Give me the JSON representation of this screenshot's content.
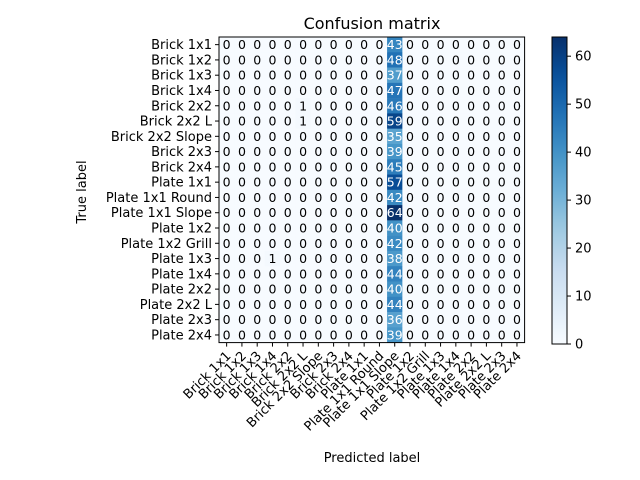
{
  "chart_data": {
    "type": "heatmap",
    "title": "Confusion matrix",
    "xlabel": "Predicted label",
    "ylabel": "True label",
    "labels": [
      "Brick 1x1",
      "Brick 1x2",
      "Brick 1x3",
      "Brick 1x4",
      "Brick 2x2",
      "Brick 2x2 L",
      "Brick 2x2 Slope",
      "Brick 2x3",
      "Brick 2x4",
      "Plate 1x1",
      "Plate 1x1 Round",
      "Plate 1x1 Slope",
      "Plate 1x2",
      "Plate 1x2 Grill",
      "Plate 1x3",
      "Plate 1x4",
      "Plate 2x2",
      "Plate 2x2 L",
      "Plate 2x3",
      "Plate 2x4"
    ],
    "matrix": [
      [
        0,
        0,
        0,
        0,
        0,
        0,
        0,
        0,
        0,
        0,
        0,
        43,
        0,
        0,
        0,
        0,
        0,
        0,
        0,
        0
      ],
      [
        0,
        0,
        0,
        0,
        0,
        0,
        0,
        0,
        0,
        0,
        0,
        48,
        0,
        0,
        0,
        0,
        0,
        0,
        0,
        0
      ],
      [
        0,
        0,
        0,
        0,
        0,
        0,
        0,
        0,
        0,
        0,
        0,
        37,
        0,
        0,
        0,
        0,
        0,
        0,
        0,
        0
      ],
      [
        0,
        0,
        0,
        0,
        0,
        0,
        0,
        0,
        0,
        0,
        0,
        47,
        0,
        0,
        0,
        0,
        0,
        0,
        0,
        0
      ],
      [
        0,
        0,
        0,
        0,
        0,
        1,
        0,
        0,
        0,
        0,
        0,
        46,
        0,
        0,
        0,
        0,
        0,
        0,
        0,
        0
      ],
      [
        0,
        0,
        0,
        0,
        0,
        1,
        0,
        0,
        0,
        0,
        0,
        59,
        0,
        0,
        0,
        0,
        0,
        0,
        0,
        0
      ],
      [
        0,
        0,
        0,
        0,
        0,
        0,
        0,
        0,
        0,
        0,
        0,
        35,
        0,
        0,
        0,
        0,
        0,
        0,
        0,
        0
      ],
      [
        0,
        0,
        0,
        0,
        0,
        0,
        0,
        0,
        0,
        0,
        0,
        39,
        0,
        0,
        0,
        0,
        0,
        0,
        0,
        0
      ],
      [
        0,
        0,
        0,
        0,
        0,
        0,
        0,
        0,
        0,
        0,
        0,
        45,
        0,
        0,
        0,
        0,
        0,
        0,
        0,
        0
      ],
      [
        0,
        0,
        0,
        0,
        0,
        0,
        0,
        0,
        0,
        0,
        0,
        57,
        0,
        0,
        0,
        0,
        0,
        0,
        0,
        0
      ],
      [
        0,
        0,
        0,
        0,
        0,
        0,
        0,
        0,
        0,
        0,
        0,
        42,
        0,
        0,
        0,
        0,
        0,
        0,
        0,
        0
      ],
      [
        0,
        0,
        0,
        0,
        0,
        0,
        0,
        0,
        0,
        0,
        0,
        64,
        0,
        0,
        0,
        0,
        0,
        0,
        0,
        0
      ],
      [
        0,
        0,
        0,
        0,
        0,
        0,
        0,
        0,
        0,
        0,
        0,
        40,
        0,
        0,
        0,
        0,
        0,
        0,
        0,
        0
      ],
      [
        0,
        0,
        0,
        0,
        0,
        0,
        0,
        0,
        0,
        0,
        0,
        42,
        0,
        0,
        0,
        0,
        0,
        0,
        0,
        0
      ],
      [
        0,
        0,
        0,
        1,
        0,
        0,
        0,
        0,
        0,
        0,
        0,
        38,
        0,
        0,
        0,
        0,
        0,
        0,
        0,
        0
      ],
      [
        0,
        0,
        0,
        0,
        0,
        0,
        0,
        0,
        0,
        0,
        0,
        44,
        0,
        0,
        0,
        0,
        0,
        0,
        0,
        0
      ],
      [
        0,
        0,
        0,
        0,
        0,
        0,
        0,
        0,
        0,
        0,
        0,
        40,
        0,
        0,
        0,
        0,
        0,
        0,
        0,
        0
      ],
      [
        0,
        0,
        0,
        0,
        0,
        0,
        0,
        0,
        0,
        0,
        0,
        44,
        0,
        0,
        0,
        0,
        0,
        0,
        0,
        0
      ],
      [
        0,
        0,
        0,
        0,
        0,
        0,
        0,
        0,
        0,
        0,
        0,
        36,
        0,
        0,
        0,
        0,
        0,
        0,
        0,
        0
      ],
      [
        0,
        0,
        0,
        0,
        0,
        0,
        0,
        0,
        0,
        0,
        0,
        39,
        0,
        0,
        0,
        0,
        0,
        0,
        0,
        0
      ]
    ],
    "colormap": "Blues",
    "colorbar": {
      "range": [
        0,
        64
      ],
      "ticks": [
        0,
        10,
        20,
        30,
        40,
        50,
        60
      ]
    },
    "grid": false
  }
}
